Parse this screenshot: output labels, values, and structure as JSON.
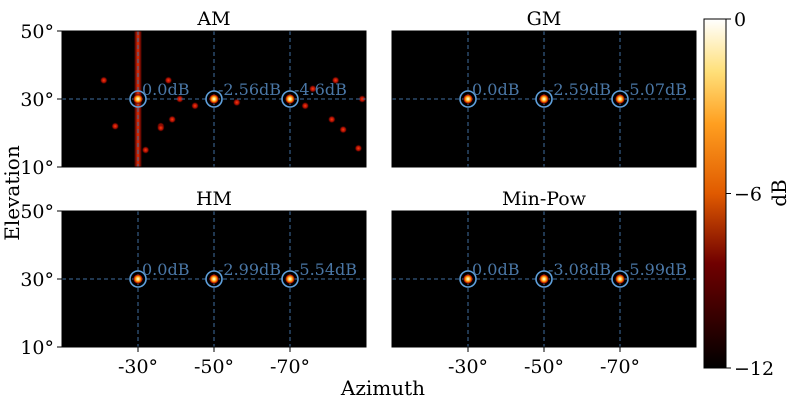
{
  "chart_data": {
    "type": "heatmap",
    "figure": {
      "xlabel": "Azimuth",
      "ylabel": "Elevation"
    },
    "xlim": [
      -10,
      -90
    ],
    "ylim": [
      10,
      50
    ],
    "x_ticks": [
      -30,
      -50,
      -70
    ],
    "x_tick_labels": [
      "-30°",
      "-50°",
      "-70°"
    ],
    "y_ticks": [
      50,
      30,
      10
    ],
    "y_tick_labels": [
      "50°",
      "30°",
      "10°"
    ],
    "reference_lines": {
      "azimuth": [
        -30,
        -50,
        -70
      ],
      "elevation": [
        30
      ]
    },
    "colorbar": {
      "label": "dB",
      "range": [
        -12,
        0
      ],
      "ticks": [
        0,
        -6,
        -12
      ],
      "tick_labels": [
        "0",
        "−6",
        "−12"
      ],
      "colormap": "afmhot"
    },
    "panels": [
      {
        "title": "AM",
        "sources": [
          {
            "azimuth": -30,
            "elevation": 30,
            "label": "0.0dB"
          },
          {
            "azimuth": -50,
            "elevation": 30,
            "label": "-2.56dB"
          },
          {
            "azimuth": -70,
            "elevation": 30,
            "label": "-4.6dB"
          }
        ],
        "artifacts": {
          "vertical_streak_azimuth": -30,
          "spurious_peaks": [
            {
              "azimuth": -21,
              "elevation": 35.5
            },
            {
              "azimuth": -24,
              "elevation": 22
            },
            {
              "azimuth": -38,
              "elevation": 35.5
            },
            {
              "azimuth": -39,
              "elevation": 24
            },
            {
              "azimuth": -36,
              "elevation": 22
            },
            {
              "azimuth": -36,
              "elevation": 21.5
            },
            {
              "azimuth": -41,
              "elevation": 30
            },
            {
              "azimuth": -32,
              "elevation": 15
            },
            {
              "azimuth": -45,
              "elevation": 28
            },
            {
              "azimuth": -56,
              "elevation": 29
            },
            {
              "azimuth": -74,
              "elevation": 28
            },
            {
              "azimuth": -76,
              "elevation": 33
            },
            {
              "azimuth": -81,
              "elevation": 24
            },
            {
              "azimuth": -82,
              "elevation": 35.5
            },
            {
              "azimuth": -84,
              "elevation": 21
            },
            {
              "azimuth": -88,
              "elevation": 15.5
            },
            {
              "azimuth": -89,
              "elevation": 30
            }
          ]
        }
      },
      {
        "title": "GM",
        "sources": [
          {
            "azimuth": -30,
            "elevation": 30,
            "label": "0.0dB"
          },
          {
            "azimuth": -50,
            "elevation": 30,
            "label": "-2.59dB"
          },
          {
            "azimuth": -70,
            "elevation": 30,
            "label": "-5.07dB"
          }
        ]
      },
      {
        "title": "HM",
        "sources": [
          {
            "azimuth": -30,
            "elevation": 30,
            "label": "0.0dB"
          },
          {
            "azimuth": -50,
            "elevation": 30,
            "label": "-2.99dB"
          },
          {
            "azimuth": -70,
            "elevation": 30,
            "label": "-5.54dB"
          }
        ]
      },
      {
        "title": "Min-Pow",
        "sources": [
          {
            "azimuth": -30,
            "elevation": 30,
            "label": "0.0dB"
          },
          {
            "azimuth": -50,
            "elevation": 30,
            "label": "-3.08dB"
          },
          {
            "azimuth": -70,
            "elevation": 30,
            "label": "-5.99dB"
          }
        ]
      }
    ]
  }
}
